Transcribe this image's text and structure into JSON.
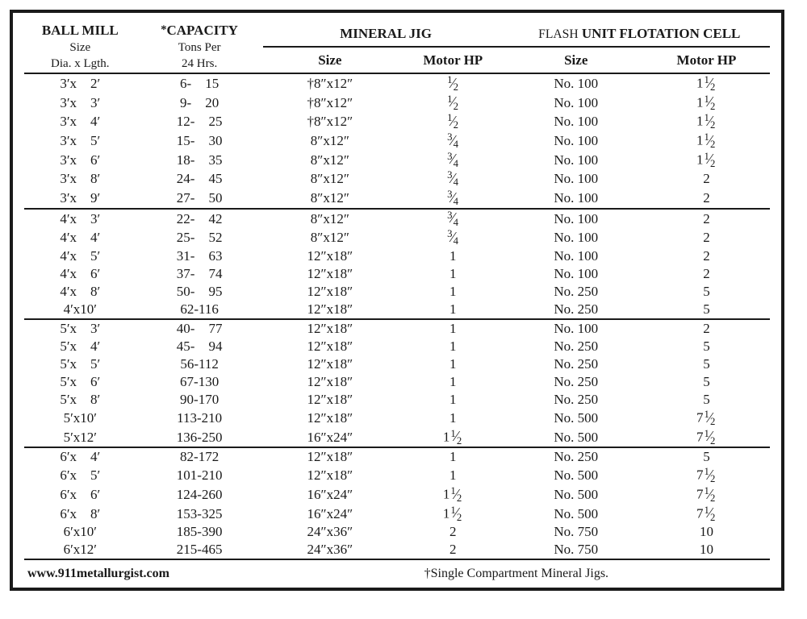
{
  "headers": {
    "ball_mill_title": "BALL MILL",
    "ball_mill_sub1": "Size",
    "ball_mill_sub2": "Dia. x Lgth.",
    "capacity_star": "*",
    "capacity_title": "CAPACITY",
    "capacity_sub1": "Tons Per",
    "capacity_sub2": "24 Hrs.",
    "mineral_jig": "MINERAL JIG",
    "flash_small": "FLASH",
    "flotation_cell": "UNIT FLOTATION CELL",
    "size": "Size",
    "motor_hp": "Motor HP"
  },
  "footer": {
    "url": "www.911metallurgist.com",
    "note": "†Single Compartment Mineral Jigs."
  },
  "groups": [
    [
      {
        "bm": "3′x  2′",
        "cap": "6-  15",
        "jig": "†8″x12″",
        "jhp": "1/2",
        "fl": "No. 100",
        "fhp": "1 1/2"
      },
      {
        "bm": "3′x  3′",
        "cap": "9-  20",
        "jig": "†8″x12″",
        "jhp": "1/2",
        "fl": "No. 100",
        "fhp": "1 1/2"
      },
      {
        "bm": "3′x  4′",
        "cap": "12-  25",
        "jig": "†8″x12″",
        "jhp": "1/2",
        "fl": "No. 100",
        "fhp": "1 1/2"
      },
      {
        "bm": "3′x  5′",
        "cap": "15-  30",
        "jig": "8″x12″",
        "jhp": "3/4",
        "fl": "No. 100",
        "fhp": "1 1/2"
      },
      {
        "bm": "3′x  6′",
        "cap": "18-  35",
        "jig": "8″x12″",
        "jhp": "3/4",
        "fl": "No. 100",
        "fhp": "1 1/2"
      },
      {
        "bm": "3′x  8′",
        "cap": "24-  45",
        "jig": "8″x12″",
        "jhp": "3/4",
        "fl": "No. 100",
        "fhp": "2"
      },
      {
        "bm": "3′x  9′",
        "cap": "27-  50",
        "jig": "8″x12″",
        "jhp": "3/4",
        "fl": "No. 100",
        "fhp": "2"
      }
    ],
    [
      {
        "bm": "4′x  3′",
        "cap": "22-  42",
        "jig": "8″x12″",
        "jhp": "3/4",
        "fl": "No. 100",
        "fhp": "2"
      },
      {
        "bm": "4′x  4′",
        "cap": "25-  52",
        "jig": "8″x12″",
        "jhp": "3/4",
        "fl": "No. 100",
        "fhp": "2"
      },
      {
        "bm": "4′x  5′",
        "cap": "31-  63",
        "jig": "12″x18″",
        "jhp": "1",
        "fl": "No. 100",
        "fhp": "2"
      },
      {
        "bm": "4′x  6′",
        "cap": "37-  74",
        "jig": "12″x18″",
        "jhp": "1",
        "fl": "No. 100",
        "fhp": "2"
      },
      {
        "bm": "4′x  8′",
        "cap": "50-  95",
        "jig": "12″x18″",
        "jhp": "1",
        "fl": "No. 250",
        "fhp": "5"
      },
      {
        "bm": "4′x10′",
        "cap": "62-116",
        "jig": "12″x18″",
        "jhp": "1",
        "fl": "No. 250",
        "fhp": "5"
      }
    ],
    [
      {
        "bm": "5′x  3′",
        "cap": "40-  77",
        "jig": "12″x18″",
        "jhp": "1",
        "fl": "No. 100",
        "fhp": "2"
      },
      {
        "bm": "5′x  4′",
        "cap": "45-  94",
        "jig": "12″x18″",
        "jhp": "1",
        "fl": "No. 250",
        "fhp": "5"
      },
      {
        "bm": "5′x  5′",
        "cap": "56-112",
        "jig": "12″x18″",
        "jhp": "1",
        "fl": "No. 250",
        "fhp": "5"
      },
      {
        "bm": "5′x  6′",
        "cap": "67-130",
        "jig": "12″x18″",
        "jhp": "1",
        "fl": "No. 250",
        "fhp": "5"
      },
      {
        "bm": "5′x  8′",
        "cap": "90-170",
        "jig": "12″x18″",
        "jhp": "1",
        "fl": "No. 250",
        "fhp": "5"
      },
      {
        "bm": "5′x10′",
        "cap": "113-210",
        "jig": "12″x18″",
        "jhp": "1",
        "fl": "No. 500",
        "fhp": "7 1/2"
      },
      {
        "bm": "5′x12′",
        "cap": "136-250",
        "jig": "16″x24″",
        "jhp": "1 1/2",
        "fl": "No. 500",
        "fhp": "7 1/2"
      }
    ],
    [
      {
        "bm": "6′x  4′",
        "cap": "82-172",
        "jig": "12″x18″",
        "jhp": "1",
        "fl": "No. 250",
        "fhp": "5"
      },
      {
        "bm": "6′x  5′",
        "cap": "101-210",
        "jig": "12″x18″",
        "jhp": "1",
        "fl": "No. 500",
        "fhp": "7 1/2"
      },
      {
        "bm": "6′x  6′",
        "cap": "124-260",
        "jig": "16″x24″",
        "jhp": "1 1/2",
        "fl": "No. 500",
        "fhp": "7 1/2"
      },
      {
        "bm": "6′x  8′",
        "cap": "153-325",
        "jig": "16″x24″",
        "jhp": "1 1/2",
        "fl": "No. 500",
        "fhp": "7 1/2"
      },
      {
        "bm": "6′x10′",
        "cap": "185-390",
        "jig": "24″x36″",
        "jhp": "2",
        "fl": "No. 750",
        "fhp": "10"
      },
      {
        "bm": "6′x12′",
        "cap": "215-465",
        "jig": "24″x36″",
        "jhp": "2",
        "fl": "No. 750",
        "fhp": "10"
      }
    ]
  ]
}
